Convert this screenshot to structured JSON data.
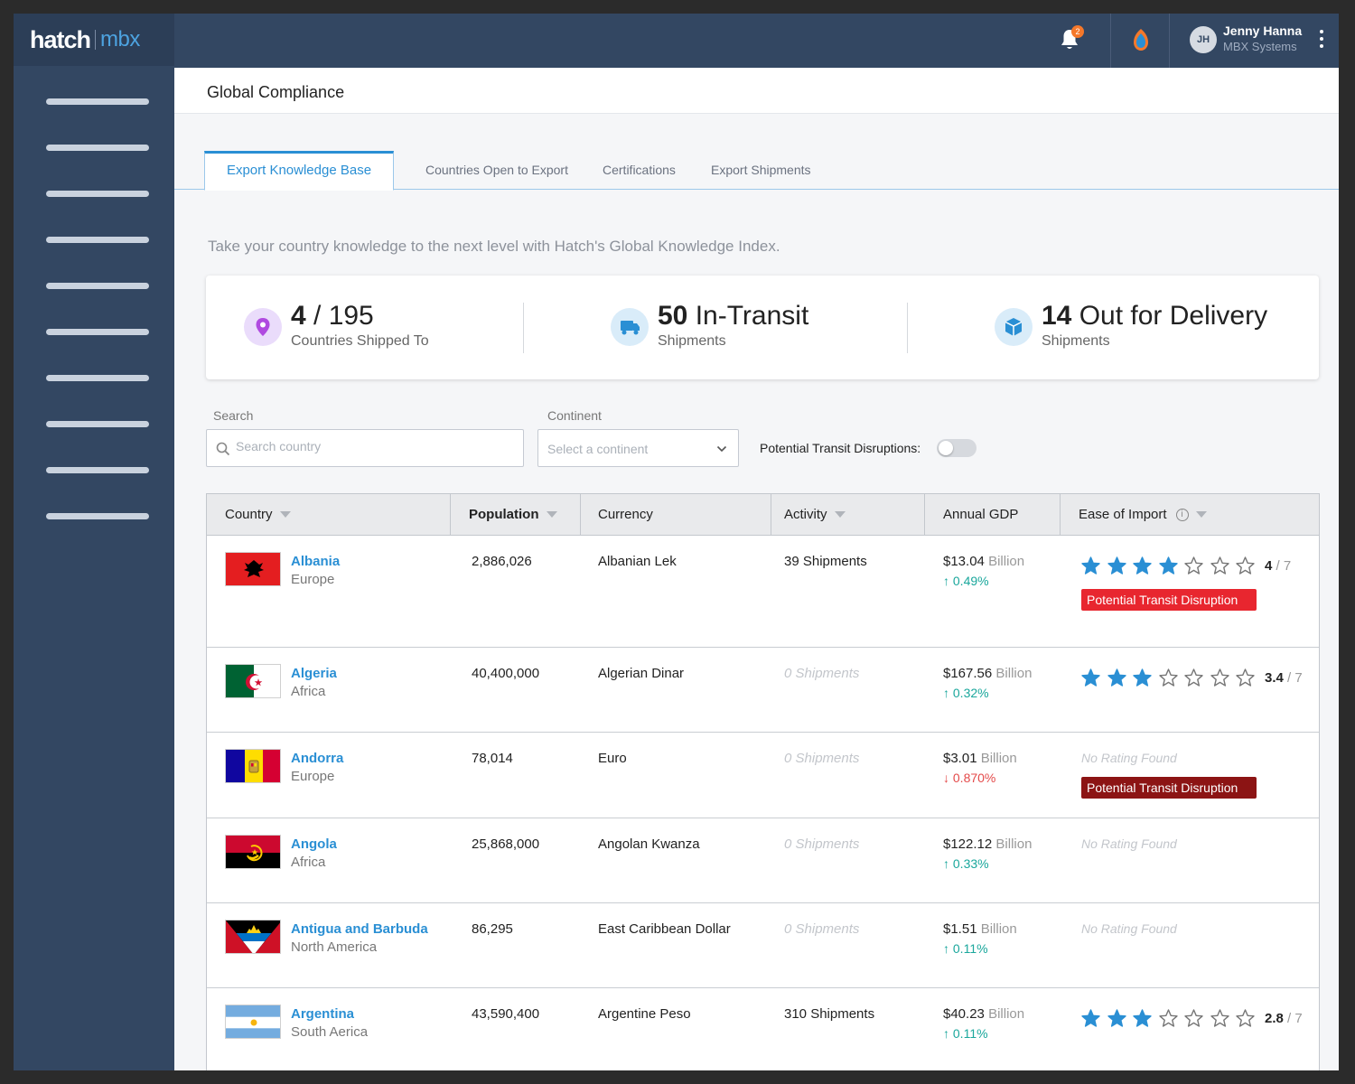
{
  "brand": {
    "logo_text": "hatch",
    "logo_sub": "mbx"
  },
  "topbar": {
    "notification_count": "2",
    "user_initials": "JH",
    "user_name": "Jenny Hanna",
    "user_company": "MBX Systems"
  },
  "page": {
    "title": "Global Compliance"
  },
  "tabs": [
    {
      "label": "Export Knowledge Base",
      "active": true
    },
    {
      "label": "Countries Open to Export"
    },
    {
      "label": "Certifications"
    },
    {
      "label": "Export Shipments"
    }
  ],
  "intro": "Take your country knowledge to the next level with Hatch's Global Knowledge Index.",
  "stats": [
    {
      "icon": "location-pin-icon",
      "value_bold": "4",
      "value_rest": " / 195",
      "label": "Countries Shipped To"
    },
    {
      "icon": "truck-icon",
      "value_bold": "50",
      "value_rest": " In-Transit",
      "label": "Shipments"
    },
    {
      "icon": "box-icon",
      "value_bold": "14",
      "value_rest": " Out for Delivery",
      "label": "Shipments"
    }
  ],
  "filters": {
    "search_label": "Search",
    "search_placeholder": "Search country",
    "continent_label": "Continent",
    "continent_placeholder": "Select a continent",
    "toggle_label": "Potential Transit Disruptions:",
    "toggle_on": false
  },
  "table": {
    "headers": [
      "Country",
      "Population",
      "Currency",
      "Activity",
      "Annual GDP",
      "Ease of Import"
    ],
    "rows": [
      {
        "country": "Albania",
        "continent": "Europe",
        "population": "2,886,026",
        "currency": "Albanian Lek",
        "activity": "39 Shipments",
        "gdp_value": "$13.04",
        "gdp_unit": "Billion",
        "gdp_change": "0.49%",
        "gdp_dir": "up",
        "rating": "4",
        "rating_max": "/ 7",
        "rating_stars": 4,
        "disruption": "Potential Transit Disruption"
      },
      {
        "country": "Algeria",
        "continent": "Africa",
        "population": "40,400,000",
        "currency": "Algerian Dinar",
        "activity": "0 Shipments",
        "gdp_value": "$167.56",
        "gdp_unit": "Billion",
        "gdp_change": "0.32%",
        "gdp_dir": "up",
        "rating": "3.4",
        "rating_max": "/ 7",
        "rating_stars": 3
      },
      {
        "country": "Andorra",
        "continent": "Europe",
        "population": "78,014",
        "currency": "Euro",
        "activity": "0 Shipments",
        "gdp_value": "$3.01",
        "gdp_unit": "Billion",
        "gdp_change": "0.870%",
        "gdp_dir": "down",
        "no_rating": "No Rating Found",
        "disruption": "Potential Transit Disruption"
      },
      {
        "country": "Angola",
        "continent": "Africa",
        "population": "25,868,000",
        "currency": "Angolan Kwanza",
        "activity": "0 Shipments",
        "gdp_value": "$122.12",
        "gdp_unit": "Billion",
        "gdp_change": "0.33%",
        "gdp_dir": "up",
        "no_rating": "No Rating Found"
      },
      {
        "country": "Antigua and Barbuda",
        "continent": "North America",
        "population": "86,295",
        "currency": "East Caribbean Dollar",
        "activity": "0 Shipments",
        "gdp_value": "$1.51",
        "gdp_unit": "Billion",
        "gdp_change": "0.11%",
        "gdp_dir": "up",
        "no_rating": "No Rating Found"
      },
      {
        "country": "Argentina",
        "continent": "South Aerica",
        "population": "43,590,400",
        "currency": "Argentine Peso",
        "activity": "310 Shipments",
        "gdp_value": "$40.23",
        "gdp_unit": "Billion",
        "gdp_change": "0.11%",
        "gdp_dir": "up",
        "rating": "2.8",
        "rating_max": "/ 7",
        "rating_stars": 3
      }
    ]
  },
  "colors": {
    "sidebar": "#334762",
    "accent": "#2a8fd4",
    "star": "#2a8fd4",
    "up": "#1aa79c",
    "down": "#e44a4a",
    "badge_bright": "#e8262f",
    "badge_dark": "#8c1414"
  }
}
